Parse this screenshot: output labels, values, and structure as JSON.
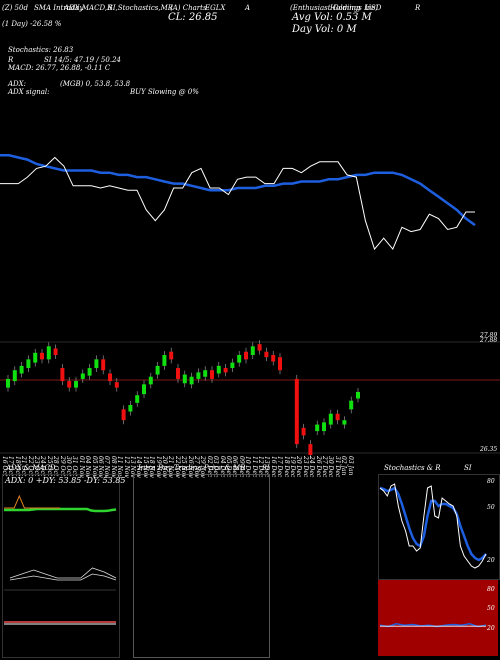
{
  "header": {
    "cells": [
      "(Z) 50d",
      "SMA Intraday",
      "ADX,MACD,R",
      "SI,Stochastics,MR",
      "(A) Charts",
      "EGLX",
      "A",
      "(Enthusiast Gaming",
      "Holdings Inc)",
      "USD",
      "R"
    ],
    "cl": "CL: 26.85",
    "avg_vol": "Avg Vol: 0.53 M",
    "day_vol": "Day Vol: 0   M",
    "day_change": "(1 Day) -26.58 %"
  },
  "info": {
    "stochastics": "Stochastics: 26.83",
    "r_prefix": "R",
    "si": "SI 14/5: 47.19 / 50.24",
    "macd": "MACD: 26.77, 26.88, -0.11 C",
    "adx": "ADX:",
    "adx_values": "(MGB) 0, 53.8, 53.8",
    "adx_signal": "ADX  signal:",
    "buy": "BUY Slowing @ 0%"
  },
  "price_labels": {
    "hi1": "27.89",
    "hi2": "27.88",
    "lo": "26.35"
  },
  "dates": [
    "16 Oct",
    "17 Oct",
    "18 Oct",
    "21 Oct",
    "22 Oct",
    "23 Oct",
    "24 Oct",
    "25 Oct",
    "28 Oct",
    "29 Oct",
    "30 Oct",
    "31 Oct",
    "01 Nov",
    "04 Nov",
    "05 Nov",
    "06 Nov",
    "07 Nov",
    "08 Nov",
    "11 Nov",
    "12 Nov",
    "13 Nov",
    "14 Nov",
    "15 Nov",
    "18 Nov",
    "19 Nov",
    "20 Nov",
    "21 Nov",
    "22 Nov",
    "25 Nov",
    "26 Nov",
    "27 Nov",
    "29 Nov",
    "02 Dec",
    "03 Dec",
    "04 Dec",
    "05 Dec",
    "06 Dec",
    "09 Dec",
    "10 Dec",
    "11 Dec",
    "12 Dec",
    "13 Dec",
    "16 Dec",
    "17 Dec",
    "18 Dec",
    "19 Dec",
    "20 Dec",
    "23 Dec",
    "24 Dec",
    "26 Dec",
    "27 Dec",
    "30 Dec",
    "31 Dec",
    "02 Jan",
    "03 Jan"
  ],
  "panels": {
    "adx_title": "ADX  & MACD",
    "adx_readout": "ADX: 0    +DY: 53.85  -DY: 53.85",
    "intra_title": "Intra  Day Trading Price  & MR",
    "intra_si": "SI",
    "stoch_title": "Stochastics & R",
    "stoch_si": "SI",
    "stoch_ticks": [
      "80",
      "50",
      "20"
    ],
    "rsi_ticks": [
      "80",
      "50",
      "20"
    ]
  },
  "chart_data": {
    "type": "line",
    "candles": [
      {
        "o": 26.92,
        "c": 27.0,
        "up": true
      },
      {
        "o": 26.98,
        "c": 27.08,
        "up": true
      },
      {
        "o": 27.05,
        "c": 27.12,
        "up": true
      },
      {
        "o": 27.1,
        "c": 27.18,
        "up": true
      },
      {
        "o": 27.15,
        "c": 27.24,
        "up": true
      },
      {
        "o": 27.24,
        "c": 27.18,
        "up": false
      },
      {
        "o": 27.18,
        "c": 27.3,
        "up": true
      },
      {
        "o": 27.28,
        "c": 27.22,
        "up": false
      },
      {
        "o": 27.1,
        "c": 26.98,
        "up": false
      },
      {
        "o": 26.98,
        "c": 26.92,
        "up": false
      },
      {
        "o": 26.92,
        "c": 26.98,
        "up": true
      },
      {
        "o": 27.0,
        "c": 27.05,
        "up": true
      },
      {
        "o": 27.03,
        "c": 27.1,
        "up": true
      },
      {
        "o": 27.1,
        "c": 27.18,
        "up": true
      },
      {
        "o": 27.18,
        "c": 27.08,
        "up": false
      },
      {
        "o": 27.05,
        "c": 26.98,
        "up": false
      },
      {
        "o": 26.97,
        "c": 26.92,
        "up": false
      },
      {
        "o": 26.72,
        "c": 26.62,
        "up": false
      },
      {
        "o": 26.7,
        "c": 26.76,
        "up": true
      },
      {
        "o": 26.78,
        "c": 26.85,
        "up": true
      },
      {
        "o": 26.86,
        "c": 26.95,
        "up": true
      },
      {
        "o": 26.95,
        "c": 27.02,
        "up": true
      },
      {
        "o": 27.04,
        "c": 27.12,
        "up": true
      },
      {
        "o": 27.12,
        "c": 27.22,
        "up": true
      },
      {
        "o": 27.25,
        "c": 27.18,
        "up": false
      },
      {
        "o": 27.1,
        "c": 27.0,
        "up": false
      },
      {
        "o": 26.96,
        "c": 27.04,
        "up": true
      },
      {
        "o": 26.95,
        "c": 27.02,
        "up": true
      },
      {
        "o": 27.0,
        "c": 27.06,
        "up": true
      },
      {
        "o": 27.02,
        "c": 27.08,
        "up": true
      },
      {
        "o": 27.08,
        "c": 27.0,
        "up": false
      },
      {
        "o": 27.05,
        "c": 27.12,
        "up": true
      },
      {
        "o": 27.1,
        "c": 27.06,
        "up": false
      },
      {
        "o": 27.1,
        "c": 27.15,
        "up": true
      },
      {
        "o": 27.15,
        "c": 27.22,
        "up": true
      },
      {
        "o": 27.25,
        "c": 27.18,
        "up": false
      },
      {
        "o": 27.22,
        "c": 27.3,
        "up": true
      },
      {
        "o": 27.32,
        "c": 27.26,
        "up": false
      },
      {
        "o": 27.25,
        "c": 27.2,
        "up": false
      },
      {
        "o": 27.22,
        "c": 27.16,
        "up": false
      },
      {
        "o": 27.2,
        "c": 27.08,
        "up": false
      },
      {
        "o": 27.0,
        "c": 26.4,
        "up": false
      },
      {
        "o": 26.55,
        "c": 26.48,
        "up": false
      },
      {
        "o": 26.4,
        "c": 26.3,
        "up": false
      },
      {
        "o": 26.52,
        "c": 26.58,
        "up": true
      },
      {
        "o": 26.52,
        "c": 26.6,
        "up": true
      },
      {
        "o": 26.58,
        "c": 26.68,
        "up": true
      },
      {
        "o": 26.68,
        "c": 26.62,
        "up": false
      },
      {
        "o": 26.58,
        "c": 26.62,
        "up": true
      },
      {
        "o": 26.72,
        "c": 26.8,
        "up": true
      },
      {
        "o": 26.82,
        "c": 26.88,
        "up": true
      }
    ],
    "ma": [
      27.63,
      27.63,
      27.62,
      27.61,
      27.59,
      27.58,
      27.57,
      27.56,
      27.56,
      27.56,
      27.56,
      27.55,
      27.55,
      27.54,
      27.54,
      27.53,
      27.53,
      27.52,
      27.51,
      27.5,
      27.5,
      27.49,
      27.48,
      27.47,
      27.47,
      27.47,
      27.48,
      27.48,
      27.48,
      27.49,
      27.49,
      27.5,
      27.5,
      27.51,
      27.51,
      27.51,
      27.52,
      27.52,
      27.53,
      27.54,
      27.54,
      27.55,
      27.55,
      27.55,
      27.54,
      27.52,
      27.5,
      27.47,
      27.44,
      27.41,
      27.38,
      27.34,
      27.31
    ],
    "price_line": [
      27.5,
      27.5,
      27.5,
      27.53,
      27.57,
      27.58,
      27.62,
      27.58,
      27.49,
      27.49,
      27.49,
      27.48,
      27.49,
      27.48,
      27.47,
      27.47,
      27.38,
      27.33,
      27.38,
      27.48,
      27.48,
      27.55,
      27.57,
      27.48,
      27.48,
      27.45,
      27.52,
      27.53,
      27.53,
      27.5,
      27.5,
      27.57,
      27.57,
      27.55,
      27.58,
      27.6,
      27.6,
      27.6,
      27.54,
      27.53,
      27.33,
      27.2,
      27.25,
      27.2,
      27.3,
      27.28,
      27.29,
      27.36,
      27.34,
      27.29,
      27.3,
      27.37,
      27.37
    ],
    "ylim_price": [
      26.3,
      27.95
    ],
    "adx_line": [
      0.2,
      0.2,
      0.2,
      0.2,
      0.2,
      0.2,
      0.2,
      0.25,
      0.3,
      0.3,
      0.3,
      0.3,
      0.3,
      0.3,
      0.3,
      0.3,
      0.3,
      0.3,
      0.3,
      0.3,
      0.3,
      0.15,
      0.1,
      0.1,
      0.1,
      0.12,
      0.2,
      0.25
    ],
    "stoch_fast": [
      88,
      85,
      80,
      90,
      92,
      70,
      55,
      45,
      30,
      30,
      25,
      28,
      60,
      88,
      90,
      60,
      58,
      78,
      75,
      72,
      70,
      60,
      30,
      20,
      15,
      10,
      8,
      10,
      15,
      22
    ],
    "stoch_slow": [
      88,
      87,
      85,
      86,
      88,
      82,
      72,
      60,
      48,
      38,
      32,
      30,
      40,
      60,
      75,
      75,
      70,
      72,
      72,
      70,
      68,
      62,
      50,
      40,
      30,
      22,
      18,
      16,
      18,
      22
    ]
  }
}
